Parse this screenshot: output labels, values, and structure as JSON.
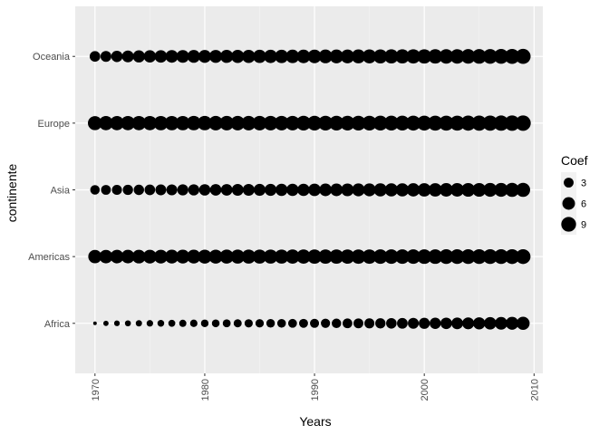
{
  "chart_data": {
    "type": "scatter",
    "xlabel": "Years",
    "ylabel": "continente",
    "xlim": [
      1968.2,
      2010.8
    ],
    "x_ticks": [
      1970,
      1980,
      1990,
      2000,
      2010
    ],
    "x_tick_labels": [
      "1970",
      "1980",
      "1990",
      "2000",
      "2010"
    ],
    "categories": [
      "Africa",
      "Americas",
      "Asia",
      "Europe",
      "Oceania"
    ],
    "x": [
      1970,
      1971,
      1972,
      1973,
      1974,
      1975,
      1976,
      1977,
      1978,
      1979,
      1980,
      1981,
      1982,
      1983,
      1984,
      1985,
      1986,
      1987,
      1988,
      1989,
      1990,
      1991,
      1992,
      1993,
      1994,
      1995,
      1996,
      1997,
      1998,
      1999,
      2000,
      2001,
      2002,
      2003,
      2004,
      2005,
      2006,
      2007,
      2008,
      2009
    ],
    "series": [
      {
        "category": "Africa",
        "values": [
          0.3,
          0.5,
          0.6,
          0.7,
          0.8,
          0.9,
          1.0,
          1.1,
          1.2,
          1.3,
          1.4,
          1.5,
          1.6,
          1.7,
          1.8,
          1.9,
          2.0,
          2.1,
          2.2,
          2.3,
          2.4,
          2.5,
          2.7,
          2.9,
          3.0,
          3.2,
          3.4,
          3.6,
          3.8,
          4.0,
          4.2,
          4.4,
          4.6,
          4.8,
          5.1,
          5.4,
          5.7,
          6.0,
          6.3,
          6.6
        ]
      },
      {
        "category": "Americas",
        "values": [
          7.0,
          7.1,
          7.2,
          7.2,
          7.3,
          7.4,
          7.4,
          7.5,
          7.6,
          7.6,
          7.7,
          7.7,
          7.8,
          7.8,
          7.9,
          7.9,
          8.0,
          8.0,
          8.1,
          8.1,
          8.2,
          8.2,
          8.3,
          8.3,
          8.4,
          8.4,
          8.5,
          8.5,
          8.6,
          8.6,
          8.7,
          8.7,
          8.8,
          8.8,
          8.9,
          8.9,
          9.0,
          9.0,
          9.1,
          9.1
        ]
      },
      {
        "category": "Asia",
        "values": [
          2.7,
          3.0,
          3.2,
          3.4,
          3.5,
          3.7,
          3.9,
          4.0,
          4.2,
          4.3,
          4.5,
          4.6,
          4.7,
          4.9,
          5.0,
          5.1,
          5.2,
          5.4,
          5.5,
          5.6,
          5.7,
          5.9,
          6.0,
          6.1,
          6.2,
          6.3,
          6.5,
          6.6,
          6.7,
          6.8,
          6.9,
          7.0,
          7.1,
          7.2,
          7.3,
          7.4,
          7.5,
          7.6,
          7.8,
          8.0
        ]
      },
      {
        "category": "Europe",
        "values": [
          8.0,
          8.1,
          8.1,
          8.2,
          8.2,
          8.2,
          8.3,
          8.3,
          8.3,
          8.4,
          8.4,
          8.5,
          8.5,
          8.5,
          8.6,
          8.6,
          8.7,
          8.7,
          8.7,
          8.8,
          8.8,
          8.9,
          8.9,
          8.9,
          9.0,
          9.0,
          9.1,
          9.1,
          9.1,
          9.2,
          9.2,
          9.3,
          9.3,
          9.4,
          9.5,
          9.6,
          9.7,
          9.8,
          9.9,
          10.0
        ]
      },
      {
        "category": "Oceania",
        "values": [
          3.7,
          4.0,
          4.5,
          5.0,
          5.3,
          5.6,
          5.8,
          6.0,
          6.1,
          6.2,
          6.3,
          6.4,
          6.5,
          6.6,
          6.7,
          6.8,
          6.9,
          7.0,
          7.1,
          7.2,
          7.3,
          7.4,
          7.5,
          7.6,
          7.7,
          7.8,
          7.9,
          8.0,
          8.1,
          8.2,
          8.3,
          8.4,
          8.5,
          8.6,
          8.7,
          8.8,
          8.9,
          9.1,
          9.3,
          9.5
        ]
      }
    ],
    "size_scale": {
      "min": 0.3,
      "max": 10.0
    },
    "legend": {
      "title": "Coef",
      "entries": [
        {
          "label": "3",
          "value": 3
        },
        {
          "label": "6",
          "value": 6
        },
        {
          "label": "9",
          "value": 9
        }
      ],
      "position": "right"
    },
    "grid": true,
    "colors": {
      "panel_bg": "#ebebeb",
      "grid_major": "#ffffff",
      "grid_minor": "#f5f5f5",
      "point": "#000000",
      "tick_text": "#4d4d4d"
    }
  }
}
